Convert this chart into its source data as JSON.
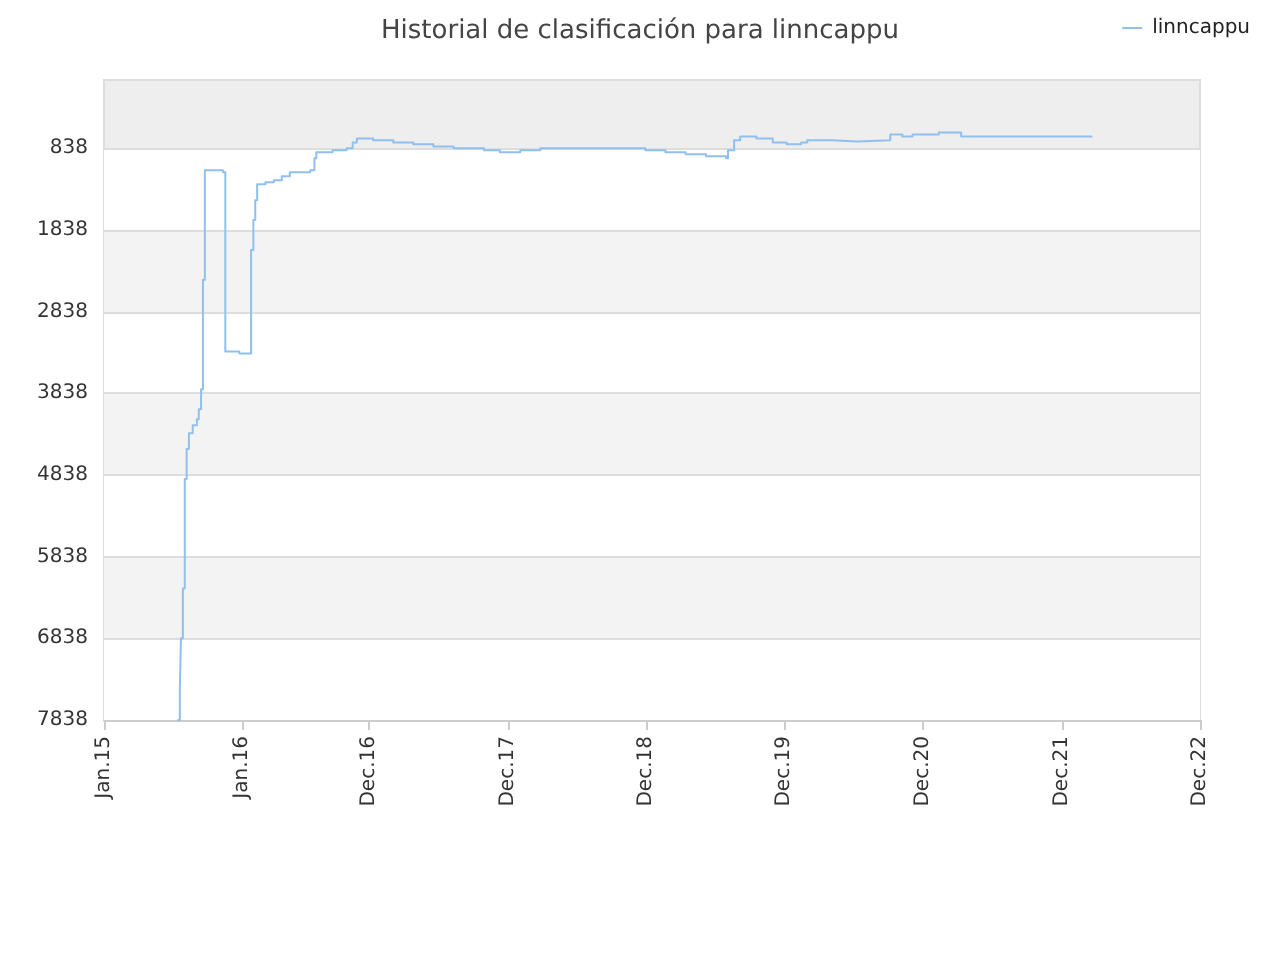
{
  "chart_data": {
    "type": "step",
    "title": "Historial de clasificación para linncappu",
    "x": [
      "2015-07-14",
      "2015-07-20",
      "2015-07-23",
      "2015-07-28",
      "2015-08-02",
      "2015-08-07",
      "2015-08-13",
      "2015-08-23",
      "2015-09-03",
      "2015-09-08",
      "2015-09-14",
      "2015-09-19",
      "2015-09-24",
      "2015-10-26",
      "2015-11-11",
      "2015-11-17",
      "2015-12-24",
      "2016-01-19",
      "2016-01-24",
      "2016-01-30",
      "2016-02-04",
      "2016-02-09",
      "2016-03-02",
      "2016-03-24",
      "2016-04-14",
      "2016-05-05",
      "2016-06-28",
      "2016-07-09",
      "2016-07-14",
      "2016-08-26",
      "2016-10-02",
      "2016-10-18",
      "2016-10-29",
      "2016-12-11",
      "2017-02-02",
      "2017-03-27",
      "2017-05-19",
      "2017-07-11",
      "2017-09-29",
      "2017-11-10",
      "2018-01-03",
      "2018-02-25",
      "2018-11-18",
      "2018-11-29",
      "2019-01-21",
      "2019-03-15",
      "2019-05-08",
      "2019-06-30",
      "2019-07-05",
      "2019-07-21",
      "2019-08-06",
      "2019-09-18",
      "2019-10-31",
      "2019-12-07",
      "2020-01-14",
      "2020-01-30",
      "2020-04-03",
      "2020-06-11",
      "2020-09-05",
      "2020-10-07",
      "2020-11-03",
      "2021-01-11",
      "2021-03-11",
      "2022-02-20"
    ],
    "series": [
      {
        "name": "linncappu",
        "color": "#90c0f0",
        "values": [
          7838,
          7472,
          6838,
          6228,
          4887,
          4521,
          4326,
          4228,
          4155,
          4033,
          3789,
          2448,
          1106,
          1106,
          1131,
          3326,
          3350,
          3350,
          2082,
          1716,
          1472,
          1277,
          1253,
          1228,
          1180,
          1131,
          1106,
          960,
          887,
          862,
          838,
          765,
          716,
          740,
          765,
          789,
          814,
          838,
          862,
          887,
          862,
          838,
          838,
          862,
          887,
          911,
          936,
          960,
          862,
          740,
          692,
          716,
          765,
          789,
          765,
          740,
          753,
          740,
          667,
          692,
          667,
          643,
          692,
          692
        ]
      }
    ],
    "ylim": [
      7838,
      1
    ],
    "yticks": [
      838,
      1838,
      2838,
      3838,
      4838,
      5838,
      6838,
      7838
    ],
    "xlim": [
      "2015-01-01",
      "2022-12-01"
    ],
    "xticks": [
      {
        "value": "2015-01-01",
        "label": "Jan.15"
      },
      {
        "value": "2016-01-01",
        "label": "Jan.16"
      },
      {
        "value": "2016-12-01",
        "label": "Dec.16"
      },
      {
        "value": "2017-12-01",
        "label": "Dec.17"
      },
      {
        "value": "2018-12-01",
        "label": "Dec.18"
      },
      {
        "value": "2019-12-01",
        "label": "Dec.19"
      },
      {
        "value": "2020-12-01",
        "label": "Dec.20"
      },
      {
        "value": "2021-12-01",
        "label": "Dec.21"
      },
      {
        "value": "2022-12-01",
        "label": "Dec.22"
      }
    ],
    "grid": "y",
    "legend": "top right",
    "marker": "none",
    "line_style": "solid"
  }
}
